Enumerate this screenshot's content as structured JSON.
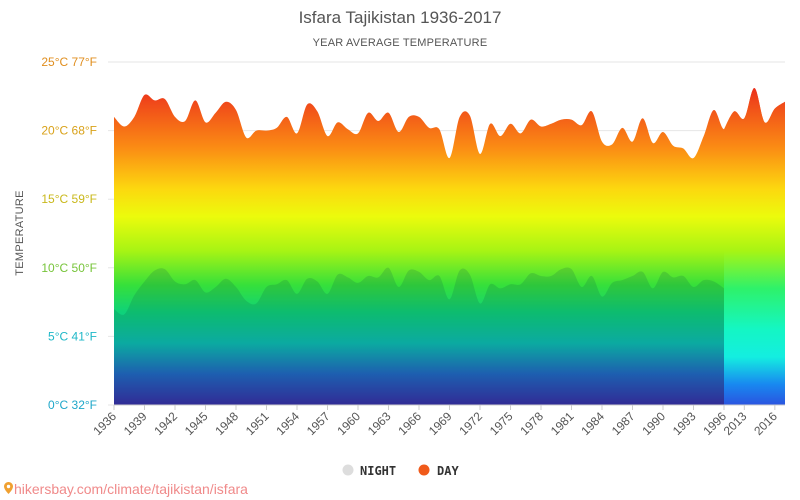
{
  "chart_data": {
    "type": "area",
    "title": "Isfara Tajikistan 1936-2017",
    "subtitle": "YEAR AVERAGE TEMPERATURE",
    "ylabel": "TEMPERATURE",
    "ylim": [
      0,
      25
    ],
    "yticks": [
      {
        "value": 0,
        "label": "0°C 32°F",
        "color": "#1fa7c9"
      },
      {
        "value": 5,
        "label": "5°C 41°F",
        "color": "#1fb8c8"
      },
      {
        "value": 10,
        "label": "10°C 50°F",
        "color": "#77c43a"
      },
      {
        "value": 15,
        "label": "15°C 59°F",
        "color": "#c9b81b"
      },
      {
        "value": 20,
        "label": "20°C 68°F",
        "color": "#d9a21a"
      },
      {
        "value": 25,
        "label": "25°C 77°F",
        "color": "#e08e1e"
      }
    ],
    "xtick_labels": [
      "1936",
      "1939",
      "1942",
      "1945",
      "1948",
      "1951",
      "1954",
      "1957",
      "1960",
      "1963",
      "1966",
      "1969",
      "1972",
      "1975",
      "1978",
      "1981",
      "1984",
      "1987",
      "1990",
      "1993",
      "1996",
      "2013",
      "2016"
    ],
    "x": [
      1936,
      1937,
      1938,
      1939,
      1940,
      1941,
      1942,
      1943,
      1944,
      1945,
      1946,
      1947,
      1948,
      1949,
      1950,
      1951,
      1952,
      1953,
      1954,
      1955,
      1956,
      1957,
      1958,
      1959,
      1960,
      1961,
      1962,
      1963,
      1964,
      1965,
      1966,
      1967,
      1968,
      1969,
      1970,
      1971,
      1972,
      1973,
      1974,
      1975,
      1976,
      1977,
      1978,
      1979,
      1980,
      1981,
      1982,
      1983,
      1984,
      1985,
      1986,
      1987,
      1988,
      1989,
      1990,
      1991,
      1992,
      1993,
      1994,
      1995,
      1996,
      2012,
      2013,
      2014,
      2015,
      2016,
      2017
    ],
    "series": [
      {
        "name": "NIGHT",
        "color": "#dddddd",
        "values": [
          7.0,
          6.6,
          8.0,
          9.0,
          9.8,
          9.9,
          9.0,
          8.8,
          9.1,
          8.2,
          8.6,
          9.2,
          8.6,
          7.6,
          7.4,
          8.6,
          8.8,
          9.1,
          8.1,
          9.2,
          9.0,
          8.1,
          9.5,
          9.3,
          8.9,
          9.4,
          9.3,
          10.0,
          8.6,
          9.8,
          9.7,
          9.1,
          9.4,
          7.7,
          9.8,
          9.5,
          7.4,
          8.8,
          8.5,
          8.8,
          8.8,
          9.6,
          9.4,
          9.4,
          9.9,
          9.9,
          8.6,
          9.4,
          7.9,
          8.9,
          9.1,
          9.4,
          9.7,
          8.5,
          9.7,
          9.3,
          9.4,
          8.6,
          9.1,
          9.0,
          8.5,
          null,
          null,
          null,
          null,
          null,
          null
        ]
      },
      {
        "name": "DAY",
        "color": "#f05a1a",
        "values": [
          21.0,
          20.3,
          21.0,
          22.6,
          22.2,
          22.3,
          21.0,
          20.7,
          22.2,
          20.6,
          21.3,
          22.1,
          21.5,
          19.5,
          20.0,
          20.0,
          20.2,
          21.0,
          19.8,
          21.9,
          21.4,
          19.6,
          20.6,
          20.1,
          19.8,
          21.3,
          20.7,
          21.3,
          19.9,
          21.0,
          21.0,
          20.2,
          20.1,
          18.0,
          21.0,
          21.1,
          18.3,
          20.5,
          19.6,
          20.5,
          19.8,
          20.8,
          20.3,
          20.5,
          20.8,
          20.8,
          20.4,
          21.4,
          19.2,
          19.0,
          20.2,
          19.2,
          20.9,
          19.1,
          19.9,
          18.9,
          18.7,
          18.0,
          19.6,
          21.5,
          20.1,
          21.4,
          20.9,
          23.1,
          20.6,
          21.6,
          22.1
        ]
      }
    ],
    "legend": {
      "placement": "bottom-center"
    }
  },
  "footer": {
    "url": "hikersbay.com/climate/tajikistan/isfara"
  }
}
